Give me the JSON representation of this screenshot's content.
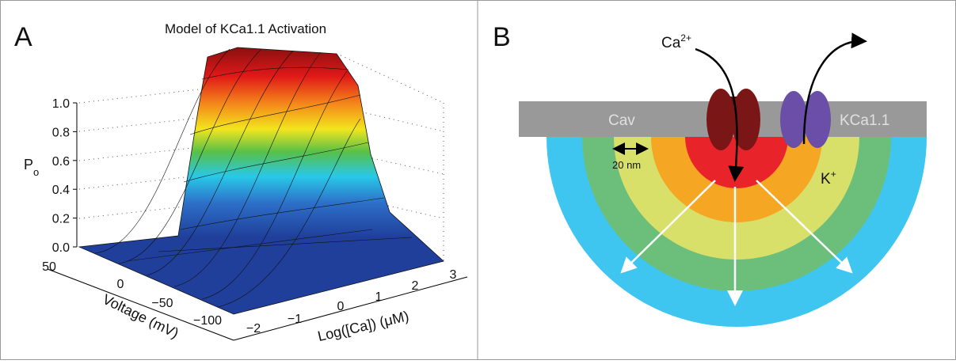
{
  "panel_a": {
    "label": "A",
    "title": "Model of KCa1.1 Activation",
    "z_axis": {
      "label": "P",
      "label_sub": "o",
      "ticks": [
        "0.0",
        "0.2",
        "0.4",
        "0.6",
        "0.8",
        "1.0"
      ]
    },
    "voltage_axis": {
      "label": "Voltage (mV)",
      "ticks": [
        "50",
        "0",
        "−50",
        "−100"
      ]
    },
    "ca_axis": {
      "label": "Log([Ca]) (μM)",
      "ticks": [
        "−2",
        "−1",
        "0",
        "1",
        "2",
        "3"
      ]
    }
  },
  "panel_b": {
    "label": "B",
    "ca": "Ca",
    "ca_sup": "2+",
    "k": "K",
    "k_sup": "+",
    "cav": "Cav",
    "kca": "KCa1.1",
    "scale": "20 nm"
  }
}
